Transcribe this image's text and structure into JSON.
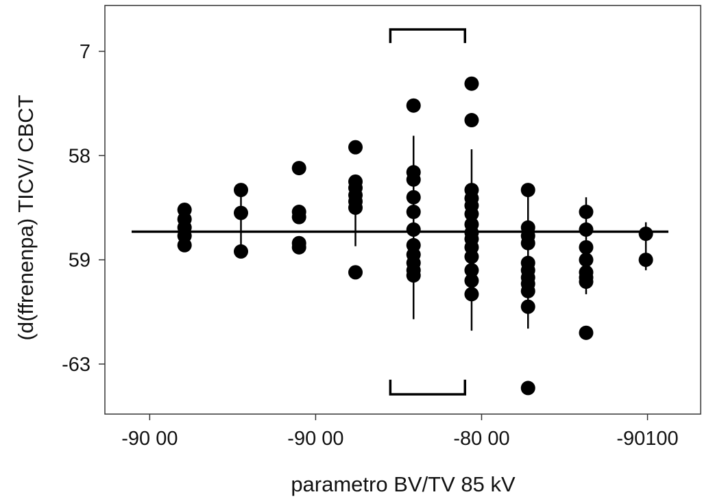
{
  "chart_data": {
    "type": "scatter",
    "title": "",
    "xlabel": "parametro BV/TV 85 kV",
    "ylabel": "(d(ffrenenpa) TICV/ CBCT",
    "xlim": [
      -0.27,
      3.32
    ],
    "ylim": [
      -0.48,
      3.44
    ],
    "x_ticks": [
      {
        "value": 0,
        "label": "-90 00"
      },
      {
        "value": 1,
        "label": "-90 00"
      },
      {
        "value": 2,
        "label": "-80 00"
      },
      {
        "value": 3,
        "label": "-90100"
      }
    ],
    "y_ticks": [
      {
        "value": 3,
        "label": "7"
      },
      {
        "value": 2,
        "label": "58"
      },
      {
        "value": 1,
        "label": "59"
      },
      {
        "value": 0,
        "label": "-63"
      }
    ],
    "grid": false,
    "reference_line_y": 1.27,
    "groups": [
      {
        "x": 0.21,
        "y": [
          1.48,
          1.39,
          1.31,
          1.23,
          1.14
        ],
        "range": null
      },
      {
        "x": 0.55,
        "y": [
          1.67,
          1.45,
          1.08
        ],
        "range": [
          1.08,
          1.67
        ]
      },
      {
        "x": 0.9,
        "y": [
          1.88,
          1.46,
          1.41,
          1.16,
          1.12
        ],
        "range": null
      },
      {
        "x": 1.24,
        "y": [
          2.08,
          1.75,
          1.69,
          1.62,
          1.56,
          1.5,
          0.88
        ],
        "range": [
          1.13,
          1.59
        ]
      },
      {
        "x": 1.59,
        "y": [
          2.48,
          1.84,
          1.77,
          1.6,
          1.46,
          1.29,
          1.14,
          1.05,
          0.97,
          0.9,
          0.85
        ],
        "range": [
          0.43,
          2.19
        ]
      },
      {
        "x": 1.94,
        "y": [
          2.69,
          2.34,
          1.67,
          1.59,
          1.52,
          1.44,
          1.34,
          1.26,
          1.2,
          1.12,
          1.03,
          0.9,
          0.8,
          0.67
        ],
        "range": [
          0.32,
          2.06
        ]
      },
      {
        "x": 2.28,
        "y": [
          1.67,
          1.31,
          1.23,
          1.16,
          0.97,
          0.9,
          0.83,
          0.77,
          0.7,
          0.55,
          -0.23
        ],
        "range": [
          0.34,
          1.67
        ]
      },
      {
        "x": 2.63,
        "y": [
          1.46,
          1.29,
          1.12,
          1.0,
          0.88,
          0.83,
          0.79,
          0.3
        ],
        "range": [
          0.67,
          1.6
        ]
      },
      {
        "x": 2.99,
        "y": [
          1.25,
          1.0
        ],
        "range": [
          0.9,
          1.36
        ]
      }
    ],
    "brackets": [
      {
        "x": [
          1.45,
          1.9
        ],
        "y": 3.21,
        "leg_to": 3.08
      },
      {
        "x": [
          1.45,
          1.9
        ],
        "y": -0.29,
        "leg_to": -0.15
      }
    ],
    "colors": {
      "marks": "#000000",
      "axis": "#333333"
    }
  }
}
